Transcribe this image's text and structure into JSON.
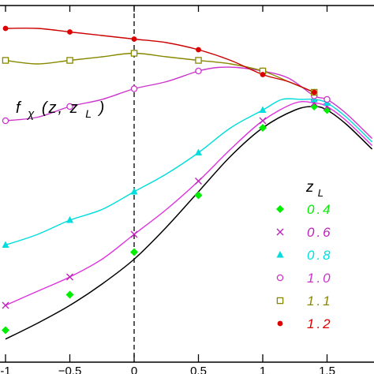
{
  "chart_data": {
    "type": "line",
    "xlim": [
      -1.0,
      1.85
    ],
    "ylim": [
      0,
      1
    ],
    "x_ticks": [
      -1,
      -0.5,
      0,
      0.5,
      1,
      1.5
    ],
    "x_tick_labels": [
      "-1",
      "−0.5",
      "0",
      "0.5",
      "1",
      "1.5"
    ],
    "y_ticks_shown": false,
    "vertical_reference_line": 0,
    "annotation": {
      "f": "f",
      "sub": "χ",
      "args_open": "(z, z",
      "args_sub": "L",
      "args_close": ")"
    },
    "legend_title": {
      "main": "z",
      "sub": "L"
    },
    "legend_placement": "lower-right",
    "black_curve": {
      "x": [
        -1.0,
        -0.75,
        -0.5,
        -0.25,
        0.0,
        0.25,
        0.5,
        0.75,
        1.0,
        1.25,
        1.4,
        1.5,
        1.65,
        1.85
      ],
      "y": [
        0.045,
        0.09,
        0.14,
        0.2,
        0.27,
        0.36,
        0.46,
        0.56,
        0.64,
        0.69,
        0.7,
        0.69,
        0.65,
        0.58
      ]
    },
    "series": [
      {
        "name": "0.4",
        "color": "#00ee00",
        "marker": "diamond",
        "points_x": [
          -1.0,
          -0.5,
          0.0,
          0.5,
          1.0,
          1.4,
          1.5
        ],
        "points_y": [
          0.07,
          0.17,
          0.29,
          0.45,
          0.64,
          0.7,
          0.69
        ],
        "curve_color": null,
        "curve_x": [],
        "curve_y": []
      },
      {
        "name": "0.6",
        "color": "#bb22bb",
        "marker": "x",
        "points_x": [
          -1.0,
          -0.5,
          0.0,
          0.5,
          1.0,
          1.4,
          1.5
        ],
        "points_y": [
          0.14,
          0.22,
          0.34,
          0.49,
          0.66,
          0.71,
          0.7
        ],
        "curve_color": "#dd33dd",
        "curve_x": [
          -1.0,
          -0.75,
          -0.5,
          -0.25,
          0.0,
          0.25,
          0.5,
          0.75,
          1.0,
          1.25,
          1.4,
          1.5,
          1.65,
          1.85
        ],
        "curve_y": [
          0.14,
          0.18,
          0.22,
          0.27,
          0.34,
          0.41,
          0.49,
          0.58,
          0.66,
          0.71,
          0.71,
          0.7,
          0.66,
          0.59
        ]
      },
      {
        "name": "0.8",
        "color": "#00dddd",
        "marker": "triangle",
        "points_x": [
          -1.0,
          -0.5,
          0.0,
          0.5,
          1.0,
          1.4,
          1.5
        ],
        "points_y": [
          0.31,
          0.38,
          0.46,
          0.57,
          0.69,
          0.72,
          0.71
        ],
        "curve_color": "#00dddd",
        "curve_x": [
          -1.0,
          -0.75,
          -0.5,
          -0.25,
          0.0,
          0.25,
          0.5,
          0.75,
          1.0,
          1.15,
          1.3,
          1.4,
          1.5,
          1.65,
          1.85
        ],
        "curve_y": [
          0.31,
          0.34,
          0.38,
          0.41,
          0.46,
          0.51,
          0.57,
          0.64,
          0.69,
          0.72,
          0.72,
          0.72,
          0.71,
          0.67,
          0.6
        ]
      },
      {
        "name": "1.0",
        "color": "#cc33cc",
        "marker": "circle",
        "points_x": [
          -1.0,
          -0.5,
          0.0,
          0.5,
          1.0,
          1.4,
          1.5
        ],
        "points_y": [
          0.66,
          0.7,
          0.75,
          0.8,
          0.8,
          0.73,
          0.72
        ],
        "curve_color": "#cc33cc",
        "curve_x": [
          -1.0,
          -0.75,
          -0.5,
          -0.25,
          0.0,
          0.25,
          0.5,
          0.65,
          0.8,
          1.0,
          1.2,
          1.4,
          1.5,
          1.65,
          1.85
        ],
        "curve_y": [
          0.66,
          0.67,
          0.7,
          0.72,
          0.75,
          0.77,
          0.8,
          0.81,
          0.81,
          0.8,
          0.78,
          0.73,
          0.72,
          0.68,
          0.61
        ]
      },
      {
        "name": "1.1",
        "color": "#888800",
        "marker": "square",
        "points_x": [
          -1.0,
          -0.5,
          0.0,
          0.5,
          1.0,
          1.4
        ],
        "points_y": [
          0.83,
          0.83,
          0.85,
          0.83,
          0.8,
          0.74
        ],
        "curve_color": "#888800",
        "curve_x": [
          -1.0,
          -0.75,
          -0.5,
          -0.25,
          0.0,
          0.25,
          0.5,
          0.75,
          1.0,
          1.2,
          1.4
        ],
        "curve_y": [
          0.83,
          0.82,
          0.83,
          0.84,
          0.85,
          0.84,
          0.83,
          0.82,
          0.8,
          0.77,
          0.74
        ]
      },
      {
        "name": "1.2",
        "color": "#dd0000",
        "marker": "dot",
        "points_x": [
          -1.0,
          -0.5,
          0.0,
          0.5,
          1.0,
          1.4
        ],
        "points_y": [
          0.92,
          0.91,
          0.89,
          0.86,
          0.79,
          0.74
        ],
        "curve_color": "#cc0000",
        "curve_x": [
          -1.0,
          -0.75,
          -0.5,
          -0.25,
          0.0,
          0.25,
          0.5,
          0.75,
          1.0,
          1.2,
          1.4
        ],
        "curve_y": [
          0.92,
          0.92,
          0.91,
          0.9,
          0.89,
          0.88,
          0.86,
          0.83,
          0.79,
          0.77,
          0.74
        ]
      }
    ]
  }
}
